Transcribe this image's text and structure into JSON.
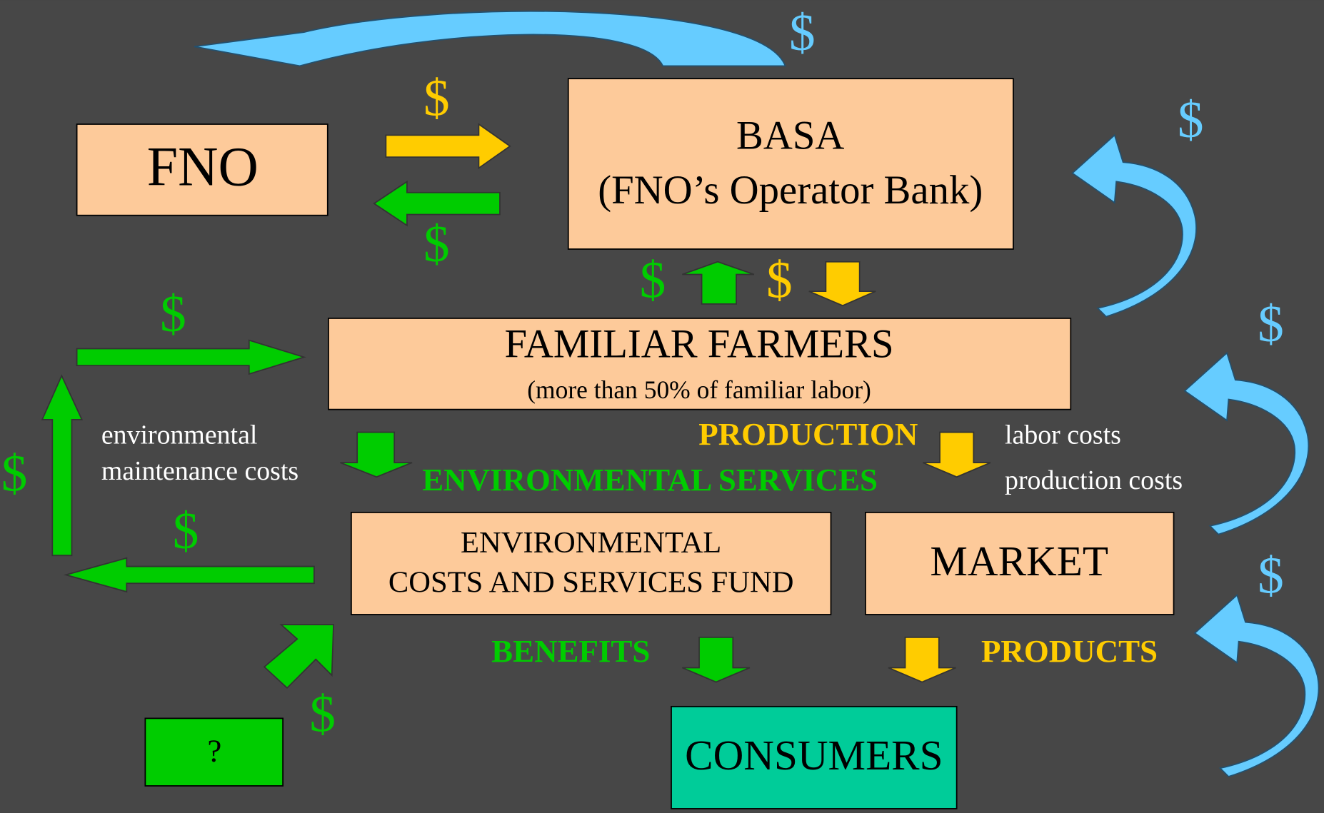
{
  "nodes": [
    {
      "lines": [
        "FNO"
      ]
    },
    {
      "lines": [
        "BASA",
        "(FNO’s Operator Bank)"
      ]
    },
    {
      "lines": [
        "FAMILIAR FARMERS",
        "(more than 50% of familiar labor)"
      ]
    },
    {
      "lines": [
        "ENVIRONMENTAL",
        "COSTS AND SERVICES FUND"
      ]
    },
    {
      "lines": [
        "MARKET"
      ]
    },
    {
      "lines": [
        "CONSUMERS"
      ]
    },
    {
      "lines": [
        "?"
      ]
    }
  ],
  "flow_labels": [
    "PRODUCTION",
    "ENVIRONMENTAL SERVICES",
    "BENEFITS",
    "PRODUCTS"
  ],
  "notes": [
    "environmental",
    "maintenance costs",
    "labor costs",
    "production costs"
  ],
  "money_labels": [
    "$",
    "$",
    "$",
    "$",
    "$",
    "$",
    "$",
    "$",
    "$",
    "$",
    "$",
    "$"
  ]
}
